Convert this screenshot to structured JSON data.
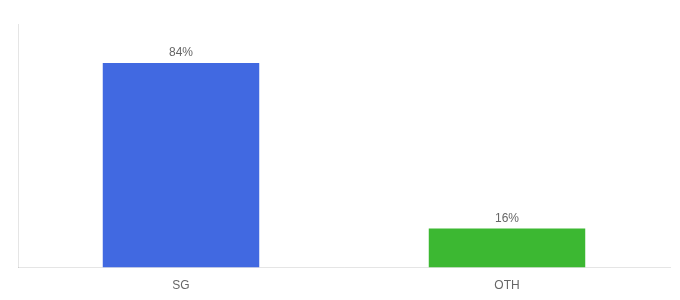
{
  "chart_data": {
    "type": "bar",
    "categories": [
      "SG",
      "OTH"
    ],
    "values": [
      84,
      16
    ],
    "colors": [
      "#4169E1",
      "#3CB832"
    ],
    "value_labels": [
      "84%",
      "16%"
    ],
    "data_labels": true,
    "ylim": [
      0,
      100
    ],
    "tick_labels": "x",
    "grid": false
  }
}
